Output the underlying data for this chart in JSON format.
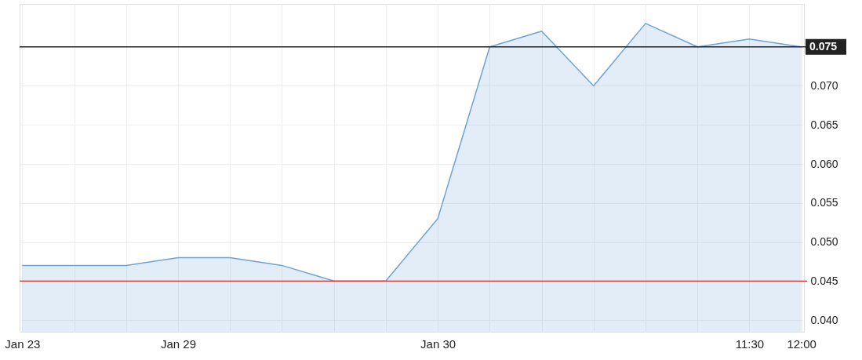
{
  "chart_data": {
    "type": "area",
    "categories": [
      "Jan 23",
      null,
      null,
      "Jan 29",
      null,
      null,
      null,
      null,
      "Jan 30",
      null,
      null,
      null,
      null,
      null,
      "11:30",
      "12:00"
    ],
    "series": [
      {
        "color": "#6fa3d8",
        "values": [
          0.047,
          0.047,
          0.047,
          0.048,
          0.048,
          0.047,
          0.045,
          0.045,
          0.053,
          0.075,
          0.077,
          0.07,
          0.078,
          0.075,
          0.076,
          0.075
        ]
      }
    ],
    "ylim": [
      0.0385,
      0.0805
    ],
    "yticks": [
      {
        "value": 0.04,
        "label": "0.040"
      },
      0.045,
      {
        "value": 0.05,
        "label": "0.050"
      },
      0.055,
      {
        "value": 0.06,
        "label": "0.060"
      },
      0.065,
      {
        "value": 0.07,
        "label": "0.070"
      }
    ],
    "ref_lines": [
      {
        "axis": "y",
        "value": 0.075,
        "label": "0.075",
        "color": "#222222"
      },
      {
        "axis": "y",
        "value": 0.045,
        "color": "#cc3333"
      }
    ],
    "grid": true
  }
}
